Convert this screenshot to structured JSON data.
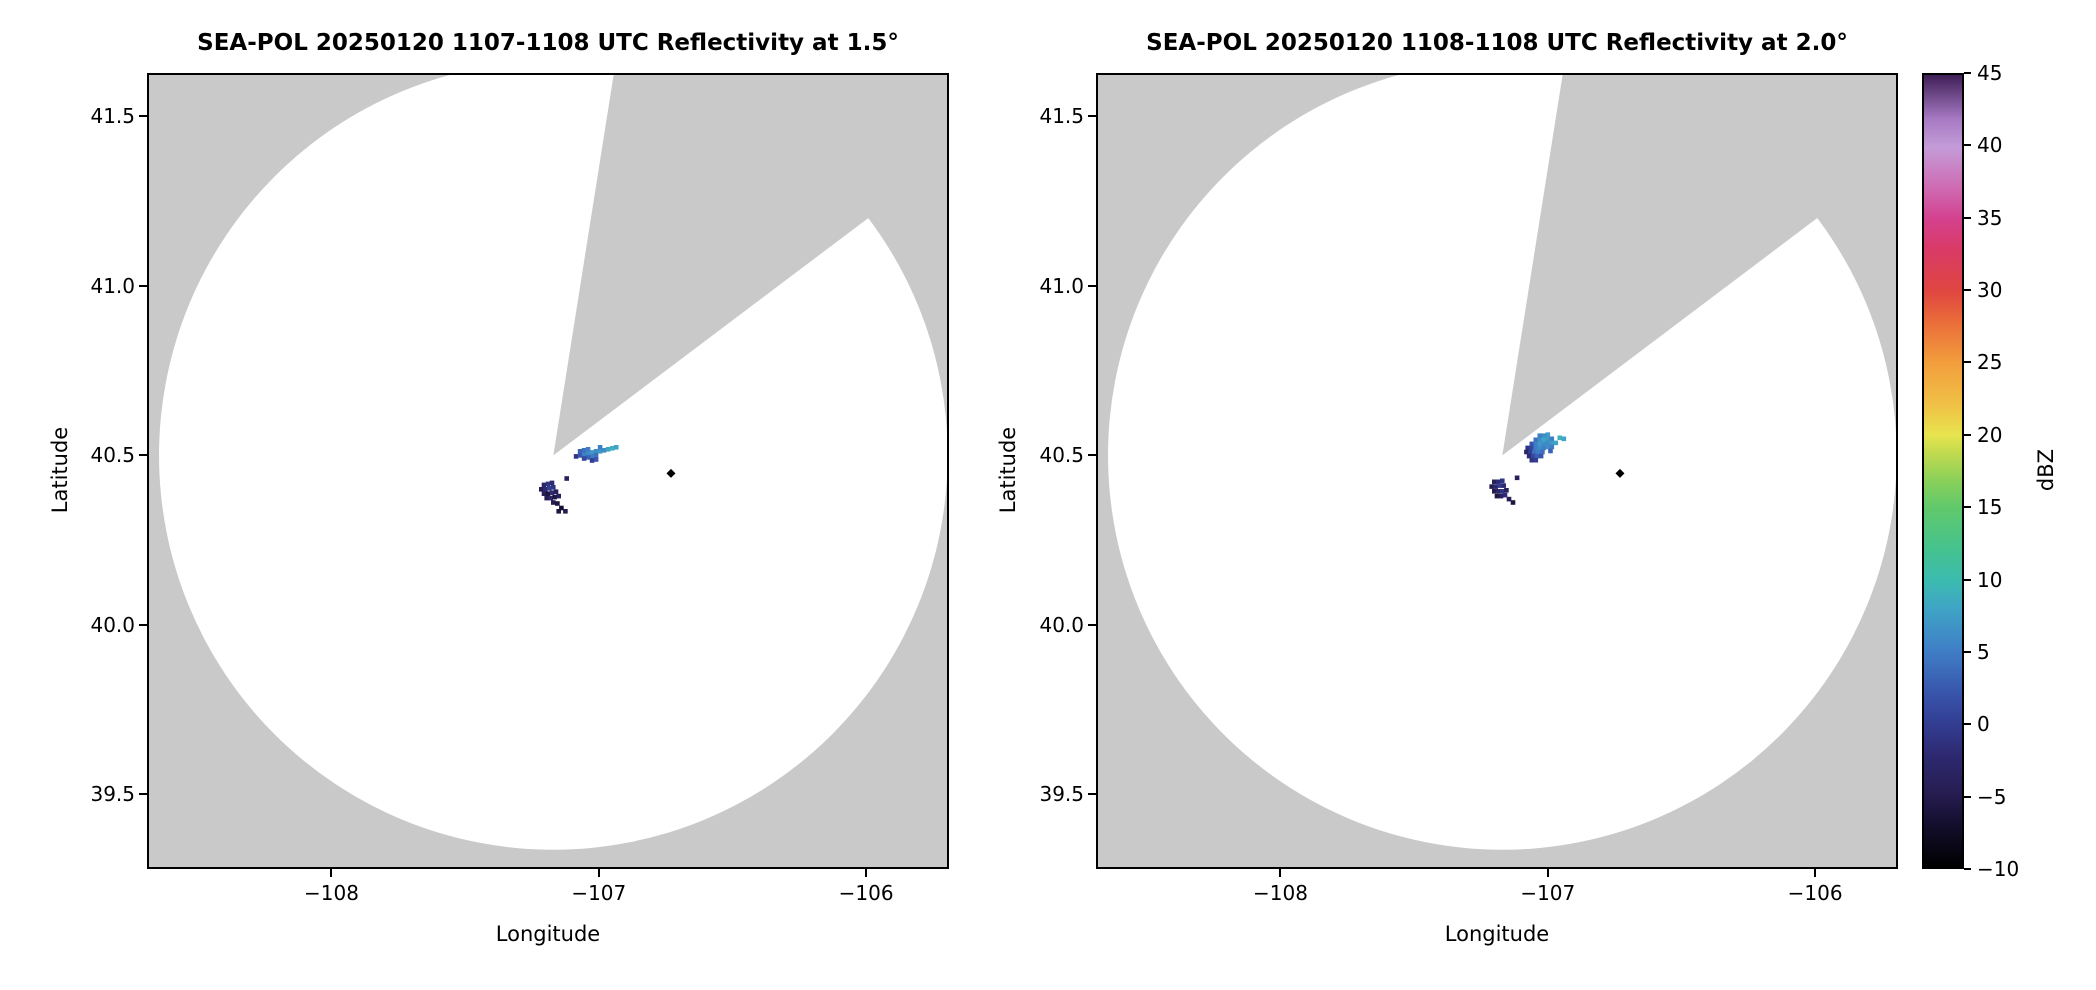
{
  "chart_data": {
    "type": "radar_ppi",
    "panels": [
      {
        "title": "SEA-POL 20250120 1107-1108 UTC Reflectivity at 1.5°",
        "xlabel": "Longitude",
        "ylabel": "Latitude",
        "xlim": [
          -108.69,
          -105.69
        ],
        "ylim": [
          39.28,
          41.628
        ],
        "xticks": [
          -108,
          -107,
          -106
        ],
        "xtick_labels": [
          "−108",
          "−107",
          "−106"
        ],
        "yticks": [
          39.5,
          40.0,
          40.5,
          41.0,
          41.5
        ],
        "ytick_labels": [
          "39.5",
          "40.0",
          "40.5",
          "41.0",
          "41.5"
        ],
        "radar": {
          "lon": -107.17,
          "lat": 40.5,
          "range_deg": 1.475,
          "blocked_sector_deg": [
            9,
            53
          ]
        },
        "marker": {
          "lon": -106.73,
          "lat": 40.447
        },
        "echoes": [
          [
            -107.085,
            40.497,
            -1
          ],
          [
            -107.07,
            40.5,
            2
          ],
          [
            -107.07,
            40.512,
            3
          ],
          [
            -107.055,
            40.503,
            5
          ],
          [
            -107.055,
            40.515,
            4
          ],
          [
            -107.04,
            40.506,
            6
          ],
          [
            -107.04,
            40.518,
            5
          ],
          [
            -107.025,
            40.509,
            7
          ],
          [
            -107.025,
            40.497,
            5
          ],
          [
            -107.01,
            40.512,
            6
          ],
          [
            -107.01,
            40.5,
            4
          ],
          [
            -106.995,
            40.512,
            7
          ],
          [
            -106.995,
            40.524,
            5
          ],
          [
            -106.98,
            40.515,
            6
          ],
          [
            -106.965,
            40.518,
            8
          ],
          [
            -106.95,
            40.521,
            9
          ],
          [
            -106.935,
            40.524,
            8
          ],
          [
            -107.04,
            40.494,
            3
          ],
          [
            -107.055,
            40.491,
            1
          ],
          [
            -107.025,
            40.485,
            0
          ],
          [
            -107.01,
            40.488,
            2
          ],
          [
            -107.205,
            40.413,
            -3
          ],
          [
            -107.19,
            40.416,
            -1
          ],
          [
            -107.175,
            40.419,
            -2
          ],
          [
            -107.215,
            40.4,
            -5
          ],
          [
            -107.2,
            40.4,
            -2
          ],
          [
            -107.185,
            40.403,
            0
          ],
          [
            -107.17,
            40.406,
            -1
          ],
          [
            -107.205,
            40.387,
            -4
          ],
          [
            -107.19,
            40.387,
            -6
          ],
          [
            -107.175,
            40.39,
            -2
          ],
          [
            -107.16,
            40.393,
            -4
          ],
          [
            -107.195,
            40.374,
            -5
          ],
          [
            -107.18,
            40.374,
            -3
          ],
          [
            -107.165,
            40.377,
            -6
          ],
          [
            -107.15,
            40.38,
            -4
          ],
          [
            -107.17,
            40.361,
            -5
          ],
          [
            -107.155,
            40.358,
            -6
          ],
          [
            -107.14,
            40.345,
            -7
          ],
          [
            -107.125,
            40.335,
            -5
          ],
          [
            -107.15,
            40.335,
            -6
          ],
          [
            -107.12,
            40.432,
            -4
          ]
        ]
      },
      {
        "title": "SEA-POL 20250120 1108-1108 UTC Reflectivity at 2.0°",
        "xlabel": "Longitude",
        "ylabel": "Latitude",
        "xlim": [
          -108.69,
          -105.69
        ],
        "ylim": [
          39.28,
          41.628
        ],
        "xticks": [
          -108,
          -107,
          -106
        ],
        "xtick_labels": [
          "−108",
          "−107",
          "−106"
        ],
        "yticks": [
          39.5,
          40.0,
          40.5,
          41.0,
          41.5
        ],
        "ytick_labels": [
          "39.5",
          "40.0",
          "40.5",
          "41.0",
          "41.5"
        ],
        "radar": {
          "lon": -107.17,
          "lat": 40.5,
          "range_deg": 1.475,
          "blocked_sector_deg": [
            9,
            53
          ]
        },
        "marker": {
          "lon": -106.73,
          "lat": 40.447
        },
        "echoes": [
          [
            -107.03,
            40.558,
            5
          ],
          [
            -107.015,
            40.558,
            6
          ],
          [
            -107.0,
            40.561,
            7
          ],
          [
            -107.045,
            40.546,
            4
          ],
          [
            -107.03,
            40.546,
            6
          ],
          [
            -107.015,
            40.546,
            8
          ],
          [
            -107.0,
            40.549,
            7
          ],
          [
            -106.985,
            40.549,
            5
          ],
          [
            -107.06,
            40.534,
            2
          ],
          [
            -107.045,
            40.534,
            5
          ],
          [
            -107.03,
            40.534,
            7
          ],
          [
            -107.015,
            40.534,
            6
          ],
          [
            -107.0,
            40.537,
            6
          ],
          [
            -106.985,
            40.537,
            7
          ],
          [
            -106.97,
            40.537,
            8
          ],
          [
            -107.075,
            40.522,
            -1
          ],
          [
            -107.06,
            40.522,
            1
          ],
          [
            -107.045,
            40.522,
            5
          ],
          [
            -107.03,
            40.522,
            6
          ],
          [
            -107.015,
            40.522,
            5
          ],
          [
            -107.0,
            40.525,
            6
          ],
          [
            -106.985,
            40.525,
            5
          ],
          [
            -107.08,
            40.51,
            -3
          ],
          [
            -107.065,
            40.51,
            0
          ],
          [
            -107.05,
            40.51,
            4
          ],
          [
            -107.035,
            40.51,
            5
          ],
          [
            -107.02,
            40.51,
            4
          ],
          [
            -106.99,
            40.513,
            3
          ],
          [
            -107.07,
            40.498,
            -2
          ],
          [
            -107.055,
            40.498,
            1
          ],
          [
            -107.04,
            40.498,
            3
          ],
          [
            -107.025,
            40.498,
            2
          ],
          [
            -107.06,
            40.486,
            -1
          ],
          [
            -107.045,
            40.486,
            0
          ],
          [
            -106.955,
            40.552,
            9
          ],
          [
            -106.94,
            40.549,
            8
          ],
          [
            -107.2,
            40.422,
            -4
          ],
          [
            -107.185,
            40.422,
            -2
          ],
          [
            -107.17,
            40.425,
            -1
          ],
          [
            -107.21,
            40.408,
            -5
          ],
          [
            -107.195,
            40.408,
            -3
          ],
          [
            -107.18,
            40.411,
            0
          ],
          [
            -107.165,
            40.411,
            -2
          ],
          [
            -107.2,
            40.394,
            -5
          ],
          [
            -107.185,
            40.394,
            -3
          ],
          [
            -107.17,
            40.394,
            -1
          ],
          [
            -107.155,
            40.397,
            -4
          ],
          [
            -107.19,
            40.38,
            -6
          ],
          [
            -107.175,
            40.38,
            -4
          ],
          [
            -107.16,
            40.383,
            -2
          ],
          [
            -107.145,
            40.371,
            -5
          ],
          [
            -107.13,
            40.361,
            -6
          ],
          [
            -107.115,
            40.434,
            -4
          ]
        ]
      }
    ],
    "colorbar": {
      "label": "dBZ",
      "min": -10,
      "max": 45,
      "ticks": [
        45,
        40,
        35,
        30,
        25,
        20,
        15,
        10,
        5,
        0,
        -5,
        -10
      ],
      "tick_labels": [
        "45",
        "40",
        "35",
        "30",
        "25",
        "20",
        "15",
        "10",
        "5",
        "0",
        "−5",
        "−10"
      ],
      "stops": [
        {
          "v": -10,
          "c": "#000000"
        },
        {
          "v": -7,
          "c": "#140f2e"
        },
        {
          "v": -5,
          "c": "#261c4f"
        },
        {
          "v": -2,
          "c": "#2e2b74"
        },
        {
          "v": 0,
          "c": "#323e92"
        },
        {
          "v": 2,
          "c": "#3854ab"
        },
        {
          "v": 5,
          "c": "#3f7ec6"
        },
        {
          "v": 8,
          "c": "#3fa5c5"
        },
        {
          "v": 10,
          "c": "#3cbcae"
        },
        {
          "v": 12,
          "c": "#44c28f"
        },
        {
          "v": 15,
          "c": "#61c96b"
        },
        {
          "v": 17,
          "c": "#8ed158"
        },
        {
          "v": 19,
          "c": "#c8dc4e"
        },
        {
          "v": 20,
          "c": "#e7e44e"
        },
        {
          "v": 22,
          "c": "#f0c246"
        },
        {
          "v": 25,
          "c": "#f29e3d"
        },
        {
          "v": 28,
          "c": "#ea6a3a"
        },
        {
          "v": 30,
          "c": "#df4640"
        },
        {
          "v": 33,
          "c": "#d93a68"
        },
        {
          "v": 35,
          "c": "#d4418e"
        },
        {
          "v": 37,
          "c": "#cf68b0"
        },
        {
          "v": 40,
          "c": "#c49cd8"
        },
        {
          "v": 42,
          "c": "#a578c2"
        },
        {
          "v": 45,
          "c": "#3f1f56"
        }
      ]
    },
    "colors": {
      "no_data": "#c9c9c9",
      "coverage": "#ffffff",
      "frame": "#000000",
      "marker": "#000000",
      "background": "#ffffff"
    }
  }
}
